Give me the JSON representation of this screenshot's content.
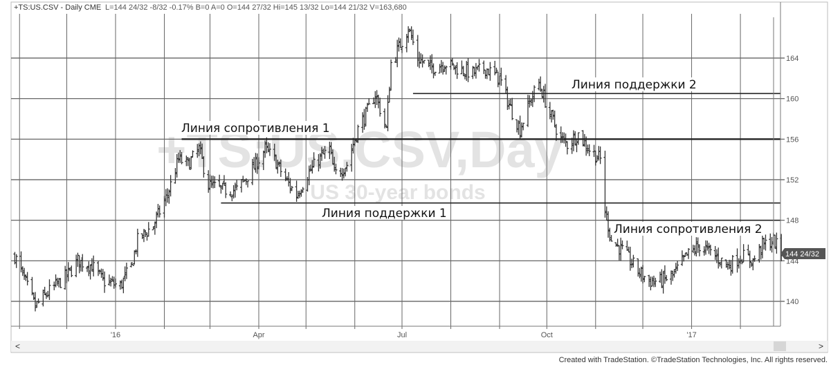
{
  "header": {
    "symbol": "+TS:US.CSV - Daily  CME",
    "quote": "L=144 24/32  -8/32  -0.17%  B=0  A=0  O=144 27/32  Hi=145 13/32  Lo=144 21/32  V=163,680"
  },
  "watermark": {
    "symbol": "+TS:US.CSV,Day",
    "description": "US 30-year bonds"
  },
  "last_price_tag": "144 24/32",
  "footer": "Created with TradeStation. ©TradeStation Technologies, Inc. All rights reserved.",
  "scrollbar": {
    "left_arrow": "<",
    "right_arrow": ">"
  },
  "colors": {
    "bars": "#333333",
    "grid": "#555555",
    "watermark": "#e3e3e3",
    "tag": "#555555"
  },
  "chart_data": {
    "type": "bar",
    "subtype": "ohlc-daily",
    "ylim": [
      137.7,
      168.7
    ],
    "yticks": [
      140,
      144,
      148,
      152,
      156,
      160,
      164
    ],
    "xticks": [
      {
        "date": "2016-01-01",
        "label": "'16"
      },
      {
        "date": "2016-04-01",
        "label": "Apr"
      },
      {
        "date": "2016-07-01",
        "label": "Jul"
      },
      {
        "date": "2016-10-01",
        "label": "Oct"
      },
      {
        "date": "2017-01-01",
        "label": "'17"
      }
    ],
    "grid": true,
    "approx_closes": [
      [
        "2015-10-29",
        144.5
      ],
      [
        "2015-11-07",
        141
      ],
      [
        "2015-11-11",
        139.5
      ],
      [
        "2015-11-20",
        141
      ],
      [
        "2015-12-01",
        142.5
      ],
      [
        "2015-12-08",
        144
      ],
      [
        "2015-12-17",
        143.5
      ],
      [
        "2015-12-24",
        142
      ],
      [
        "2016-01-04",
        141.5
      ],
      [
        "2016-01-11",
        143.5
      ],
      [
        "2016-01-15",
        146
      ],
      [
        "2016-01-25",
        147.5
      ],
      [
        "2016-02-03",
        150.5
      ],
      [
        "2016-02-10",
        154
      ],
      [
        "2016-02-16",
        153.5
      ],
      [
        "2016-02-23",
        155
      ],
      [
        "2016-02-29",
        151.5
      ],
      [
        "2016-03-09",
        151
      ],
      [
        "2016-03-18",
        151
      ],
      [
        "2016-03-28",
        153
      ],
      [
        "2016-04-05",
        155
      ],
      [
        "2016-04-11",
        154
      ],
      [
        "2016-04-18",
        152
      ],
      [
        "2016-04-25",
        150.5
      ],
      [
        "2016-05-02",
        152.5
      ],
      [
        "2016-05-09",
        154
      ],
      [
        "2016-05-16",
        155
      ],
      [
        "2016-05-19",
        152.5
      ],
      [
        "2016-05-27",
        153.5
      ],
      [
        "2016-06-03",
        157
      ],
      [
        "2016-06-10",
        159
      ],
      [
        "2016-06-14",
        160.5
      ],
      [
        "2016-06-21",
        157
      ],
      [
        "2016-06-24",
        163.5
      ],
      [
        "2016-06-29",
        165
      ],
      [
        "2016-07-05",
        167
      ],
      [
        "2016-07-11",
        164
      ],
      [
        "2016-07-19",
        163
      ],
      [
        "2016-07-28",
        163.5
      ],
      [
        "2016-08-05",
        163
      ],
      [
        "2016-08-15",
        162.5
      ],
      [
        "2016-08-23",
        163
      ],
      [
        "2016-09-01",
        162
      ],
      [
        "2016-09-08",
        159
      ],
      [
        "2016-09-14",
        157
      ],
      [
        "2016-09-21",
        160
      ],
      [
        "2016-09-26",
        161.5
      ],
      [
        "2016-10-03",
        158.5
      ],
      [
        "2016-10-10",
        156
      ],
      [
        "2016-10-14",
        155.5
      ],
      [
        "2016-10-21",
        156.5
      ],
      [
        "2016-10-28",
        155
      ],
      [
        "2016-11-04",
        154
      ],
      [
        "2016-11-07",
        149
      ],
      [
        "2016-11-11",
        146
      ],
      [
        "2016-11-18",
        145
      ],
      [
        "2016-11-28",
        143
      ],
      [
        "2016-12-05",
        142
      ],
      [
        "2016-12-12",
        142
      ],
      [
        "2016-12-20",
        142.5
      ],
      [
        "2016-12-29",
        144.5
      ],
      [
        "2017-01-06",
        145.5
      ],
      [
        "2017-01-16",
        144.5
      ],
      [
        "2017-01-24",
        143.5
      ],
      [
        "2017-02-02",
        144.5
      ],
      [
        "2017-02-09",
        144
      ],
      [
        "2017-02-15",
        145.5
      ],
      [
        "2017-02-22",
        146
      ],
      [
        "2017-02-27",
        144.75
      ]
    ],
    "annotations": [
      {
        "label": "Линия сопротивления 1",
        "price": 156,
        "from": "2016-02-12"
      },
      {
        "label": "Линия поддержки 1",
        "price": 149.7,
        "from": "2016-03-08"
      },
      {
        "label": "Линия поддержки 2",
        "price": 160.5,
        "from": "2016-07-08"
      },
      {
        "label": "Линия сопротивления 2",
        "price": 148,
        "from": "2016-11-08"
      }
    ]
  }
}
